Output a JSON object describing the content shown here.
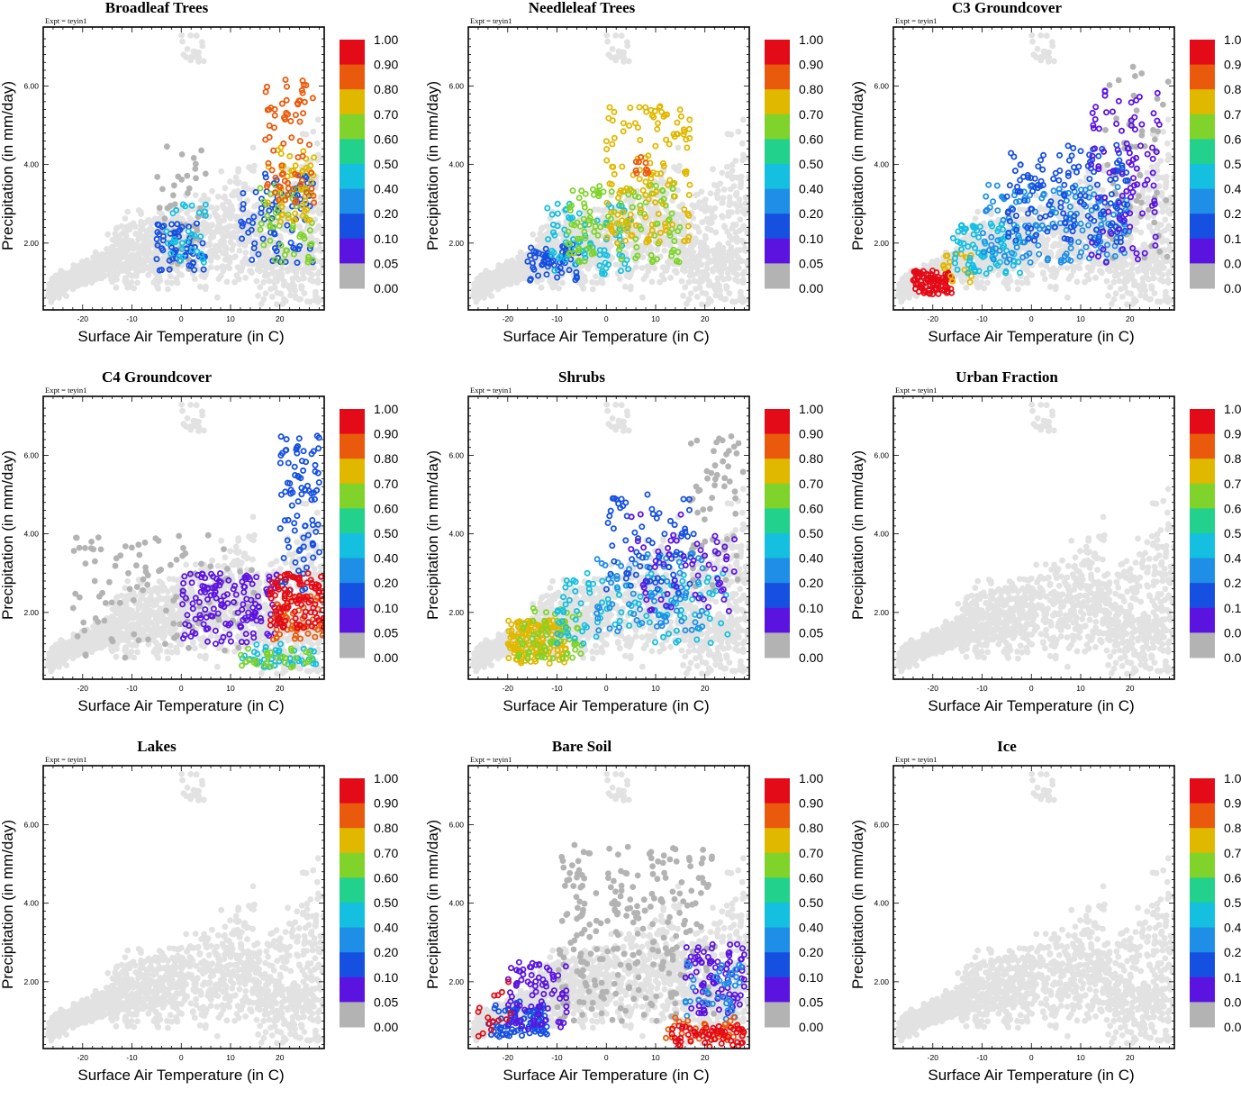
{
  "figure": {
    "expt_label": "Expt = teyin1",
    "xlabel": "Surface Air Temperature (in C)",
    "ylabel": "Precipitation (in mm/day)"
  },
  "colorbar": {
    "labels": [
      "1.00",
      "0.90",
      "0.80",
      "0.70",
      "0.60",
      "0.50",
      "0.40",
      "0.20",
      "0.10",
      "0.05",
      "0.00"
    ],
    "colors": [
      "#e30b17",
      "#ea5a0c",
      "#e0b800",
      "#7fd32a",
      "#21d18c",
      "#14bfe0",
      "#1f8ee6",
      "#1650e0",
      "#5b14e0",
      "#b3b3b3"
    ]
  },
  "chart_data": [
    {
      "type": "scatter",
      "title": "Broadleaf Trees",
      "xlabel": "Surface Air Temperature (in C)",
      "ylabel": "Precipitation (in mm/day)",
      "xlim": [
        -28,
        29
      ],
      "ylim": [
        0.3,
        7.5
      ],
      "xticks": [
        "-20",
        "-10",
        "0",
        "10",
        "20"
      ],
      "yticks": [
        "2.00",
        "4.00",
        "6.00"
      ],
      "background_color": "#e2e2e2",
      "clusters": [
        {
          "value": 0.0,
          "color": "#b3b3b3",
          "x": [
            -5,
            5
          ],
          "y": [
            1.3,
            4.5
          ],
          "n": 50
        },
        {
          "value": 0.1,
          "color": "#1650e0",
          "x": [
            -5,
            5
          ],
          "y": [
            1.3,
            2.5
          ],
          "n": 60
        },
        {
          "value": 0.4,
          "color": "#14bfe0",
          "x": [
            -3,
            5
          ],
          "y": [
            1.5,
            3.0
          ],
          "n": 30
        },
        {
          "value": 0.1,
          "color": "#1650e0",
          "x": [
            12,
            27
          ],
          "y": [
            1.5,
            3.8
          ],
          "n": 80
        },
        {
          "value": 0.6,
          "color": "#7fd32a",
          "x": [
            16,
            27
          ],
          "y": [
            1.5,
            3.5
          ],
          "n": 50
        },
        {
          "value": 0.7,
          "color": "#e0b800",
          "x": [
            17,
            27
          ],
          "y": [
            2.5,
            4.5
          ],
          "n": 50
        },
        {
          "value": 0.8,
          "color": "#ea5a0c",
          "x": [
            17,
            27
          ],
          "y": [
            3.0,
            6.2
          ],
          "n": 70
        }
      ]
    },
    {
      "type": "scatter",
      "title": "Needleleaf Trees",
      "xlabel": "Surface Air Temperature (in C)",
      "ylabel": "Precipitation (in mm/day)",
      "xlim": [
        -28,
        29
      ],
      "ylim": [
        0.3,
        7.5
      ],
      "xticks": [
        "-20",
        "-10",
        "0",
        "10",
        "20"
      ],
      "yticks": [
        "2.00",
        "4.00",
        "6.00"
      ],
      "background_color": "#e2e2e2",
      "clusters": [
        {
          "value": 0.1,
          "color": "#1650e0",
          "x": [
            -16,
            -5
          ],
          "y": [
            1.0,
            2.0
          ],
          "n": 60
        },
        {
          "value": 0.4,
          "color": "#14bfe0",
          "x": [
            -12,
            5
          ],
          "y": [
            1.2,
            3.0
          ],
          "n": 80
        },
        {
          "value": 0.6,
          "color": "#7fd32a",
          "x": [
            -8,
            15
          ],
          "y": [
            1.5,
            3.5
          ],
          "n": 120
        },
        {
          "value": 0.7,
          "color": "#e0b800",
          "x": [
            0,
            17
          ],
          "y": [
            2.0,
            5.5
          ],
          "n": 140
        },
        {
          "value": 0.8,
          "color": "#ea5a0c",
          "x": [
            5,
            10
          ],
          "y": [
            3.5,
            4.2
          ],
          "n": 10
        }
      ]
    },
    {
      "type": "scatter",
      "title": "C3 Groundcover",
      "xlabel": "Surface Air Temperature (in C)",
      "ylabel": "Precipitation (in mm/day)",
      "xlim": [
        -28,
        29
      ],
      "ylim": [
        0.3,
        7.5
      ],
      "xticks": [
        "-20",
        "-10",
        "0",
        "10",
        "20"
      ],
      "yticks": [
        "2.00",
        "4.00",
        "6.00"
      ],
      "background_color": "#e2e2e2",
      "clusters": [
        {
          "value": 0.0,
          "color": "#b3b3b3",
          "x": [
            15,
            28
          ],
          "y": [
            1.5,
            6.5
          ],
          "n": 60
        },
        {
          "value": 1.0,
          "color": "#e30b17",
          "x": [
            -24,
            -16
          ],
          "y": [
            0.7,
            1.3
          ],
          "n": 90
        },
        {
          "value": 0.7,
          "color": "#e0b800",
          "x": [
            -18,
            -12
          ],
          "y": [
            1.0,
            1.8
          ],
          "n": 20
        },
        {
          "value": 0.4,
          "color": "#14bfe0",
          "x": [
            -16,
            -2
          ],
          "y": [
            1.2,
            2.5
          ],
          "n": 80
        },
        {
          "value": 0.2,
          "color": "#1f8ee6",
          "x": [
            -10,
            20
          ],
          "y": [
            1.5,
            3.5
          ],
          "n": 160
        },
        {
          "value": 0.1,
          "color": "#1650e0",
          "x": [
            -5,
            20
          ],
          "y": [
            2.0,
            4.5
          ],
          "n": 150
        },
        {
          "value": 0.05,
          "color": "#5b14e0",
          "x": [
            12,
            26
          ],
          "y": [
            1.5,
            6.0
          ],
          "n": 90
        }
      ]
    },
    {
      "type": "scatter",
      "title": "C4 Groundcover",
      "xlabel": "Surface Air Temperature (in C)",
      "ylabel": "Precipitation (in mm/day)",
      "xlim": [
        -28,
        29
      ],
      "ylim": [
        0.3,
        7.5
      ],
      "xticks": [
        "-20",
        "-10",
        "0",
        "10",
        "20"
      ],
      "yticks": [
        "2.00",
        "4.00",
        "6.00"
      ],
      "background_color": "#e2e2e2",
      "clusters": [
        {
          "value": 0.0,
          "color": "#b3b3b3",
          "x": [
            -22,
            15
          ],
          "y": [
            0.8,
            4.0
          ],
          "n": 110
        },
        {
          "value": 0.05,
          "color": "#5b14e0",
          "x": [
            0,
            20
          ],
          "y": [
            1.2,
            3.0
          ],
          "n": 140
        },
        {
          "value": 0.1,
          "color": "#1650e0",
          "x": [
            20,
            28
          ],
          "y": [
            2.5,
            6.5
          ],
          "n": 90
        },
        {
          "value": 0.4,
          "color": "#14bfe0",
          "x": [
            12,
            28
          ],
          "y": [
            0.6,
            1.2
          ],
          "n": 50
        },
        {
          "value": 0.6,
          "color": "#7fd32a",
          "x": [
            12,
            27
          ],
          "y": [
            0.6,
            1.1
          ],
          "n": 30
        },
        {
          "value": 0.8,
          "color": "#ea5a0c",
          "x": [
            18,
            29
          ],
          "y": [
            1.3,
            2.5
          ],
          "n": 60
        },
        {
          "value": 1.0,
          "color": "#e30b17",
          "x": [
            18,
            29
          ],
          "y": [
            1.6,
            3.0
          ],
          "n": 110
        }
      ]
    },
    {
      "type": "scatter",
      "title": "Shrubs",
      "xlabel": "Surface Air Temperature (in C)",
      "ylabel": "Precipitation (in mm/day)",
      "xlim": [
        -28,
        29
      ],
      "ylim": [
        0.3,
        7.5
      ],
      "xticks": [
        "-20",
        "-10",
        "0",
        "10",
        "20"
      ],
      "yticks": [
        "2.00",
        "4.00",
        "6.00"
      ],
      "background_color": "#e2e2e2",
      "clusters": [
        {
          "value": 0.0,
          "color": "#b3b3b3",
          "x": [
            17,
            28
          ],
          "y": [
            2.5,
            6.5
          ],
          "n": 60
        },
        {
          "value": 0.7,
          "color": "#e0b800",
          "x": [
            -20,
            -8
          ],
          "y": [
            0.7,
            1.8
          ],
          "n": 160
        },
        {
          "value": 0.6,
          "color": "#7fd32a",
          "x": [
            -18,
            -5
          ],
          "y": [
            0.8,
            2.2
          ],
          "n": 60
        },
        {
          "value": 0.4,
          "color": "#14bfe0",
          "x": [
            -10,
            25
          ],
          "y": [
            1.2,
            3.0
          ],
          "n": 110
        },
        {
          "value": 0.2,
          "color": "#1f8ee6",
          "x": [
            -2,
            20
          ],
          "y": [
            1.5,
            3.5
          ],
          "n": 80
        },
        {
          "value": 0.1,
          "color": "#1650e0",
          "x": [
            0,
            18
          ],
          "y": [
            2.5,
            5.0
          ],
          "n": 70
        },
        {
          "value": 0.05,
          "color": "#5b14e0",
          "x": [
            5,
            26
          ],
          "y": [
            2.0,
            4.5
          ],
          "n": 60
        }
      ]
    },
    {
      "type": "scatter",
      "title": "Urban Fraction",
      "xlabel": "Surface Air Temperature (in C)",
      "ylabel": "Precipitation (in mm/day)",
      "xlim": [
        -28,
        29
      ],
      "ylim": [
        0.3,
        7.5
      ],
      "xticks": [
        "-20",
        "-10",
        "0",
        "10",
        "20"
      ],
      "yticks": [
        "2.00",
        "4.00",
        "6.00"
      ],
      "background_color": "#e2e2e2",
      "clusters": []
    },
    {
      "type": "scatter",
      "title": "Lakes",
      "xlabel": "Surface Air Temperature (in C)",
      "ylabel": "Precipitation (in mm/day)",
      "xlim": [
        -28,
        29
      ],
      "ylim": [
        0.3,
        7.5
      ],
      "xticks": [
        "-20",
        "-10",
        "0",
        "10",
        "20"
      ],
      "yticks": [
        "2.00",
        "4.00",
        "6.00"
      ],
      "background_color": "#e2e2e2",
      "clusters": []
    },
    {
      "type": "scatter",
      "title": "Bare Soil",
      "xlabel": "Surface Air Temperature (in C)",
      "ylabel": "Precipitation (in mm/day)",
      "xlim": [
        -28,
        29
      ],
      "ylim": [
        0.3,
        7.5
      ],
      "xticks": [
        "-20",
        "-10",
        "0",
        "10",
        "20"
      ],
      "yticks": [
        "2.00",
        "4.00",
        "6.00"
      ],
      "background_color": "#e2e2e2",
      "clusters": [
        {
          "value": 0.0,
          "color": "#b3b3b3",
          "x": [
            -10,
            22
          ],
          "y": [
            1.0,
            5.5
          ],
          "n": 260
        },
        {
          "value": 0.1,
          "color": "#1650e0",
          "x": [
            -24,
            -12
          ],
          "y": [
            0.6,
            1.5
          ],
          "n": 90
        },
        {
          "value": 0.05,
          "color": "#5b14e0",
          "x": [
            -20,
            -8
          ],
          "y": [
            0.8,
            2.5
          ],
          "n": 80
        },
        {
          "value": 1.0,
          "color": "#e30b17",
          "x": [
            -28,
            -18
          ],
          "y": [
            0.6,
            2.0
          ],
          "n": 15
        },
        {
          "value": 0.05,
          "color": "#5b14e0",
          "x": [
            16,
            28
          ],
          "y": [
            1.2,
            3.0
          ],
          "n": 90
        },
        {
          "value": 0.2,
          "color": "#1f8ee6",
          "x": [
            16,
            28
          ],
          "y": [
            1.0,
            2.5
          ],
          "n": 40
        },
        {
          "value": 0.8,
          "color": "#ea5a0c",
          "x": [
            12,
            28
          ],
          "y": [
            0.5,
            1.1
          ],
          "n": 40
        },
        {
          "value": 1.0,
          "color": "#e30b17",
          "x": [
            13,
            28
          ],
          "y": [
            0.35,
            0.9
          ],
          "n": 60
        }
      ]
    },
    {
      "type": "scatter",
      "title": "Ice",
      "xlabel": "Surface Air Temperature (in C)",
      "ylabel": "Precipitation (in mm/day)",
      "xlim": [
        -28,
        29
      ],
      "ylim": [
        0.3,
        7.5
      ],
      "xticks": [
        "-20",
        "-10",
        "0",
        "10",
        "20"
      ],
      "yticks": [
        "2.00",
        "4.00",
        "6.00"
      ],
      "background_color": "#e2e2e2",
      "clusters": []
    }
  ]
}
